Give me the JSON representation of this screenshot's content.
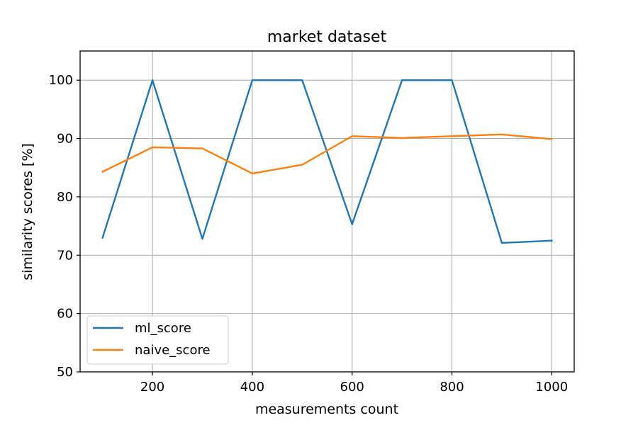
{
  "chart_data": {
    "type": "line",
    "title": "market dataset",
    "xlabel": "measurements count",
    "ylabel": "similarity scores [%]",
    "xlim": [
      55,
      1045
    ],
    "ylim": [
      50,
      105
    ],
    "xticks": [
      200,
      400,
      600,
      800,
      1000
    ],
    "yticks": [
      50,
      60,
      70,
      80,
      90,
      100
    ],
    "grid": true,
    "legend_position": "lower-left",
    "x": [
      100,
      200,
      300,
      400,
      500,
      600,
      700,
      800,
      900,
      1000
    ],
    "series": [
      {
        "name": "ml_score",
        "color": "#1f77b4",
        "values": [
          73.0,
          100.0,
          72.8,
          100.0,
          100.0,
          75.3,
          100.0,
          100.0,
          72.1,
          72.5
        ]
      },
      {
        "name": "naive_score",
        "color": "#ff7f0e",
        "values": [
          84.3,
          88.5,
          88.3,
          84.0,
          85.5,
          90.4,
          90.1,
          90.4,
          90.7,
          89.9
        ]
      }
    ]
  }
}
